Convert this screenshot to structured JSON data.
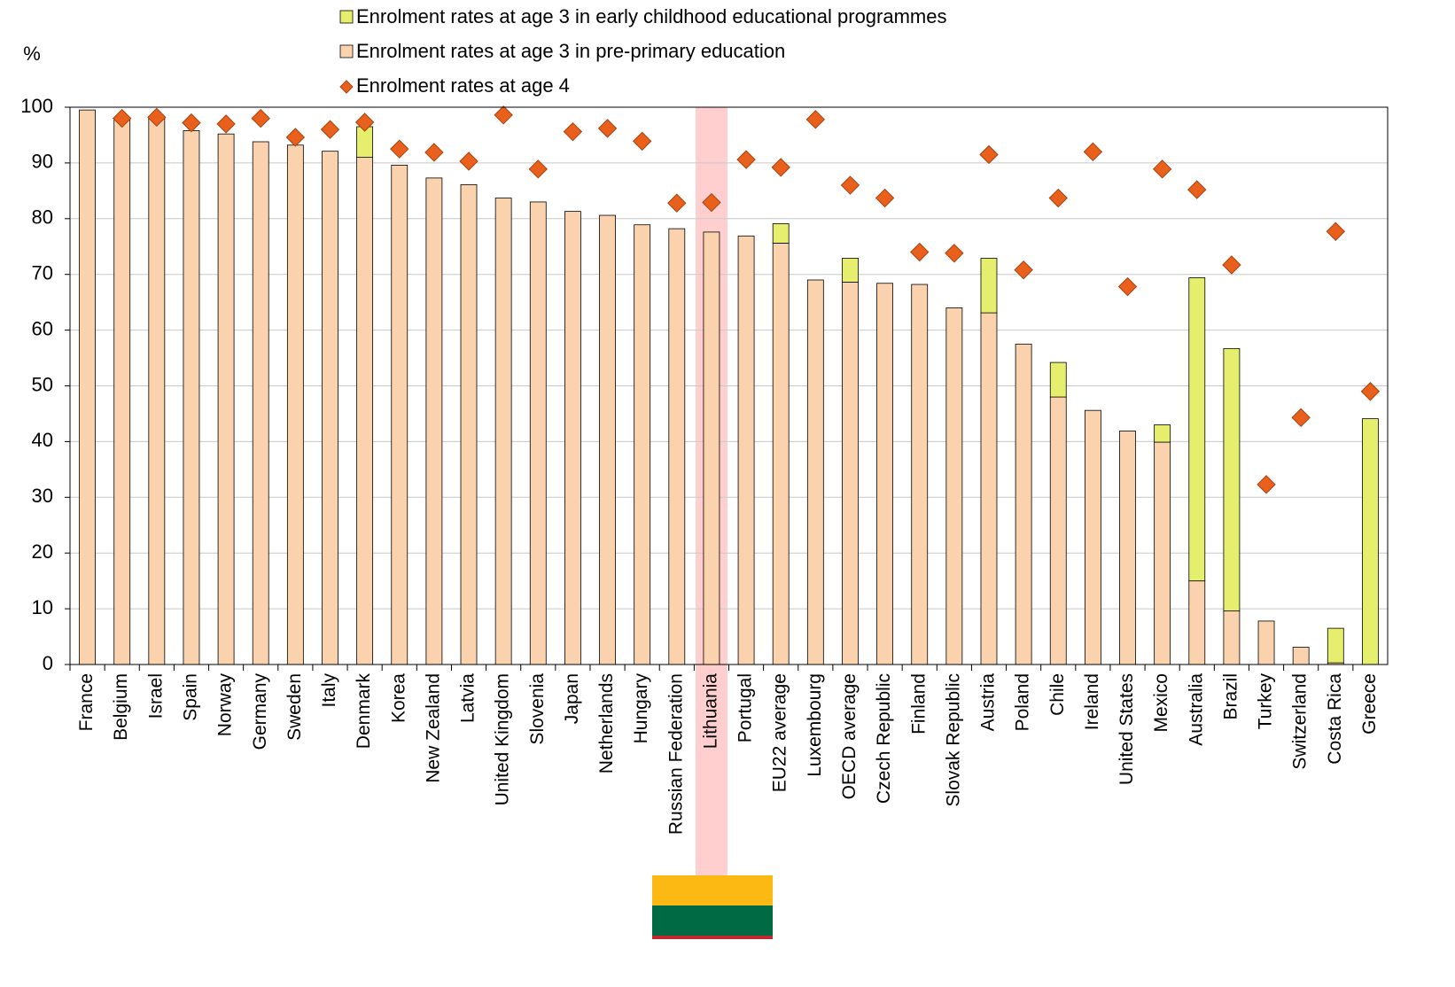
{
  "chart_data": {
    "type": "bar",
    "ylabel": "%",
    "categories": [
      "France",
      "Belgium",
      "Israel",
      "Spain",
      "Norway",
      "Germany",
      "Sweden",
      "Italy",
      "Denmark",
      "Korea",
      "New Zealand",
      "Latvia",
      "United Kingdom",
      "Slovenia",
      "Japan",
      "Netherlands",
      "Hungary",
      "Russian Federation",
      "Lithuania",
      "Portugal",
      "EU22 average",
      "Luxembourg",
      "OECD average",
      "Czech Republic",
      "Finland",
      "Slovak Republic",
      "Austria",
      "Poland",
      "Chile",
      "Ireland",
      "United States",
      "Mexico",
      "Australia",
      "Brazil",
      "Turkey",
      "Switzerland",
      "Costa Rica",
      "Greece"
    ],
    "series": [
      {
        "name": "Enrolment rates at age 3 in early childhood educational programmes",
        "type": "bar",
        "color": "#e6ee6e",
        "values": [
          null,
          null,
          null,
          null,
          null,
          null,
          null,
          null,
          5.5,
          null,
          null,
          null,
          null,
          null,
          null,
          null,
          null,
          null,
          null,
          null,
          3.5,
          null,
          4.3,
          null,
          null,
          null,
          9.8,
          null,
          6.2,
          null,
          null,
          3.1,
          54.4,
          47.1,
          null,
          null,
          6.2,
          44.1
        ]
      },
      {
        "name": "Enrolment rates at age 3 in pre-primary education",
        "type": "bar",
        "color": "#fbd2ae",
        "values": [
          99.5,
          98,
          98,
          95.8,
          95.2,
          93.8,
          93.2,
          92.1,
          91,
          89.6,
          87.3,
          86.1,
          83.7,
          83,
          81.3,
          80.6,
          78.9,
          78.2,
          77.6,
          76.9,
          75.6,
          69,
          68.6,
          68.4,
          68.2,
          64,
          63.1,
          57.5,
          48,
          45.6,
          41.9,
          39.9,
          15,
          9.6,
          7.8,
          3.1,
          0.3,
          0
        ]
      },
      {
        "name": "Enrolment rates at age 4",
        "type": "scatter",
        "color": "#e8601c",
        "values": [
          null,
          98,
          98.2,
          97.2,
          97,
          98,
          94.6,
          96,
          97.3,
          92.5,
          91.9,
          90.3,
          98.6,
          88.9,
          95.6,
          96.2,
          93.9,
          82.8,
          82.9,
          90.6,
          89.2,
          97.8,
          86,
          83.7,
          74,
          73.8,
          91.5,
          70.8,
          83.7,
          92,
          67.8,
          88.9,
          85.2,
          71.7,
          32.3,
          44.3,
          77.7,
          49
        ]
      }
    ],
    "ylim": [
      0,
      100
    ],
    "yticks": [
      0,
      10,
      20,
      30,
      40,
      50,
      60,
      70,
      80,
      90,
      100
    ],
    "grid": true,
    "highlight": "Lithuania"
  }
}
